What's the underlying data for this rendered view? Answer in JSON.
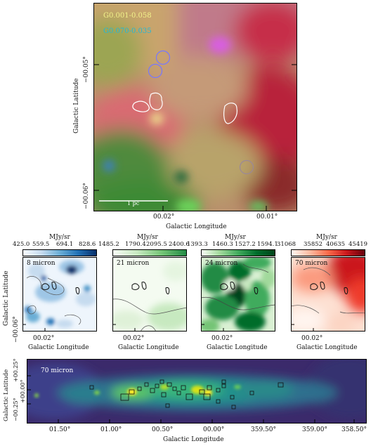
{
  "top_panel": {
    "source_labels": [
      "G0.001-0.058",
      "G0.070-0.035"
    ],
    "source_label_colors": [
      "#f2f28a",
      "#1fb8d9"
    ],
    "scalebar_label": "1 pc",
    "x_ticks": [
      "00.02°",
      "00.01°"
    ],
    "y_ticks": [
      "−00.05°",
      "−00.06°"
    ],
    "xlabel": "Galactic Longitude",
    "ylabel": "Galactic Latitude"
  },
  "mid_panels": [
    {
      "unit": "MJy/sr",
      "ticks": [
        "425.0",
        "559.5",
        "694.1",
        "828.6"
      ],
      "band": "8 micron",
      "colormap": "blues",
      "x_tick": "00.02°",
      "xlabel": "Galactic Longitude"
    },
    {
      "unit": "MJy/sr",
      "ticks": [
        "1485.2",
        "1790.4",
        "2095.5",
        "2400.6"
      ],
      "band": "21 micron",
      "colormap": "greens-light",
      "x_tick": "00.02°",
      "xlabel": "Galactic Longitude"
    },
    {
      "unit": "MJy/sr",
      "ticks": [
        "1393.3",
        "1460.3",
        "1527.2",
        "1594.1"
      ],
      "band": "24 micron",
      "colormap": "greens",
      "x_tick": "00.02°",
      "xlabel": "Galactic Longitude"
    },
    {
      "unit": "MJy/sr",
      "ticks": [
        "31068",
        "35852",
        "40635",
        "45419"
      ],
      "band": "70 micron",
      "colormap": "reds",
      "x_tick": "00.02°",
      "xlabel": "Galactic Longitude"
    }
  ],
  "mid_ylabel": "Galactic Latitude",
  "mid_y_tick": "−00.06°",
  "bottom_panel": {
    "band": "70 micron",
    "colormap": "viridis",
    "x_ticks": [
      "01.50°",
      "01.00°",
      "00.50°",
      "00.00°",
      "359.50°",
      "359.00°",
      "358.50°"
    ],
    "y_ticks": [
      "+00.25°",
      "+00.00°",
      "−00.25°"
    ],
    "xlabel": "Galactic Longitude",
    "ylabel": "Galactic Latitude"
  }
}
